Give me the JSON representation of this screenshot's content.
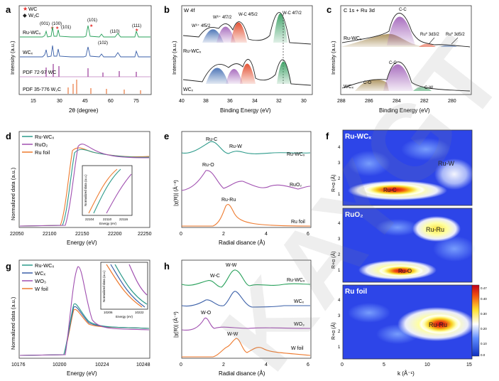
{
  "figure": {
    "panel_letters": [
      "a",
      "b",
      "c",
      "d",
      "e",
      "f",
      "g",
      "h"
    ],
    "watermark": "KAYGT"
  },
  "panel_a": {
    "legend": [
      "WC",
      "W₂C"
    ],
    "legend_colors": [
      "#e5312e",
      "#222222"
    ],
    "peak_labels": [
      "(001)",
      "(100)",
      "(101)",
      "(101)",
      "(102)",
      "(110)",
      "(111)"
    ],
    "curve_labels": [
      "Ru-WCₓ",
      "WCₓ",
      "PDF 72-97 WC",
      "PDF 35-776 W₂C"
    ],
    "xticks": [
      "15",
      "30",
      "45",
      "60",
      "75"
    ],
    "xlabel": "2θ (degree)",
    "ylabel": "Intensity (a.u.)",
    "colors": {
      "ru_wcx": "#27a05a",
      "wcx": "#3a5fa8",
      "pdf_wc": "#9a3a9a",
      "pdf_w2c": "#e9773e"
    }
  },
  "panel_b": {
    "title": "W 4f",
    "peak_labels": [
      "W⁶⁺ 4f5/2",
      "W⁶⁺ 4f7/2",
      "W-C 4f5/2",
      "W-C 4f7/2"
    ],
    "curve_labels": [
      "Ru-WCₓ",
      "WCₓ"
    ],
    "xticks": [
      "40",
      "38",
      "36",
      "34",
      "32",
      "30"
    ],
    "xlabel": "Binding Energy (eV)",
    "ylabel": "Intensity (a.u.)"
  },
  "panel_c": {
    "title": "C 1s + Ru 3d",
    "peak_labels": [
      "C-C",
      "Ru⁰ 3d3/2",
      "Ru⁰ 3d5/2",
      "C-C",
      "C-O",
      "C-W"
    ],
    "curve_labels": [
      "Ru-WCₓ",
      "WCₓ"
    ],
    "xticks": [
      "288",
      "286",
      "284",
      "282",
      "280"
    ],
    "xlabel": "Binding Energy (eV)",
    "ylabel": "Intensity (a.u.)"
  },
  "panel_d": {
    "legend": [
      "Ru-WCₓ",
      "RuO₂",
      "Ru foil"
    ],
    "legend_colors": [
      "#2c9a8a",
      "#a04fb0",
      "#ee7a2e"
    ],
    "xticks": [
      "22050",
      "22100",
      "22150",
      "22200",
      "22250"
    ],
    "xlabel": "Energy (eV)",
    "ylabel": "Normalized data (a.u.)",
    "inset_xticks": [
      "22104",
      "22110",
      "22116"
    ],
    "inset_xlabel": "Energy (eV)",
    "inset_ylabel": "Normalized data (a.u.)"
  },
  "panel_e": {
    "labels": [
      "Ru-C",
      "Ru-W",
      "Ru-WCₓ",
      "Ru-O",
      "RuO₂",
      "Ru-Ru",
      "Ru foil"
    ],
    "xticks": [
      "0",
      "2",
      "4",
      "6"
    ],
    "xlabel": "Radial disance (Å)",
    "ylabel": "|χ(R)| (Å⁻³)"
  },
  "panel_f": {
    "subpanels": [
      {
        "title": "Ru-WCₓ",
        "labels": [
          "Ru-W",
          "Ru-C"
        ],
        "yticks": [
          "4",
          "3",
          "2",
          "1"
        ]
      },
      {
        "title": "RuO₂",
        "labels": [
          "Ru-Ru",
          "Ru-O"
        ],
        "yticks": [
          "4",
          "3",
          "2",
          "1"
        ]
      },
      {
        "title": "Ru foil",
        "labels": [
          "Ru-Ru"
        ],
        "yticks": [
          "4",
          "3",
          "2",
          "1"
        ]
      }
    ],
    "ylabel": "R+α (Å)",
    "xticks": [
      "0",
      "5",
      "10",
      "15"
    ],
    "xlabel": "k (Å⁻¹)",
    "colorbar_ticks": [
      "0.47",
      "0.40",
      "0.30",
      "0.20",
      "0.10",
      "0.0"
    ]
  },
  "panel_g": {
    "legend": [
      "Ru-WCₓ",
      "WCₓ",
      "WO₃",
      "W foil"
    ],
    "legend_colors": [
      "#2c9a8a",
      "#3a5fa8",
      "#a04fb0",
      "#ee7a2e"
    ],
    "xticks": [
      "10176",
      "10200",
      "10224",
      "10248"
    ],
    "xlabel": "Energy (eV)",
    "ylabel": "Normalized data (a.u.)",
    "inset_xticks": [
      "10206",
      "10222"
    ],
    "inset_xlabel": "Energy (eV)",
    "inset_ylabel": "Normalized data (a.u.)"
  },
  "panel_h": {
    "labels": [
      "W-W",
      "W-C",
      "Ru-WCₓ",
      "WCₓ",
      "W-O",
      "WO₃",
      "W-W",
      "W foil"
    ],
    "xticks": [
      "0",
      "2",
      "4",
      "6"
    ],
    "xlabel": "Radial disance (Å)",
    "ylabel": "|χ(R)| (Å⁻³)"
  }
}
